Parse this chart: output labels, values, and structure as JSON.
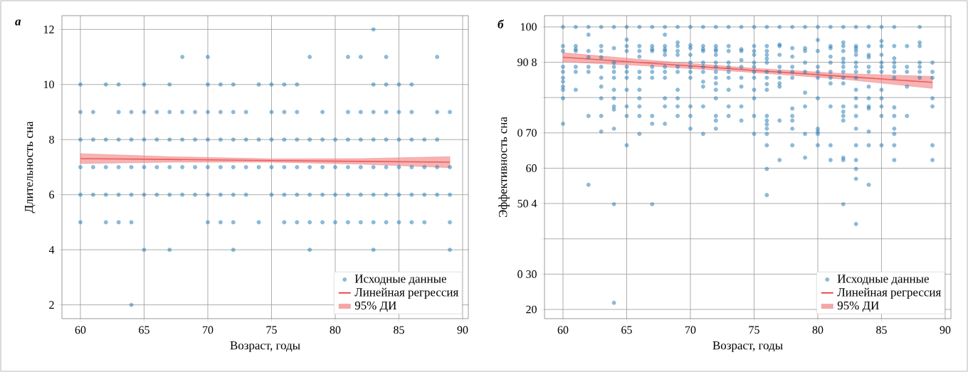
{
  "chart_data": [
    {
      "type": "scatter",
      "title": "а",
      "xlabel": "Возраст, годы",
      "ylabel": "Длительность сна",
      "xlim": [
        58.55,
        90.45
      ],
      "ylim": [
        1.5,
        12.5
      ],
      "xticks": [
        60,
        65,
        70,
        75,
        80,
        85,
        90
      ],
      "yticks": [
        2,
        4,
        6,
        8,
        10,
        12
      ],
      "grid": true,
      "legend": "bottom right",
      "annotations": [
        "95% ДИ"
      ],
      "series": [
        {
          "name": "Исходные данные",
          "color": "#1f77b4",
          "x": [
            83,
            68,
            70,
            78,
            81,
            82,
            84,
            88,
            60,
            62,
            63,
            65,
            67,
            70,
            71,
            72,
            74,
            75,
            76,
            77,
            83,
            84,
            85,
            86,
            60,
            61,
            63,
            64,
            65,
            66,
            67,
            68,
            69,
            70,
            71,
            72,
            73,
            75,
            76,
            77,
            79,
            81,
            82,
            83,
            84,
            85,
            86,
            88,
            89,
            60,
            61,
            62,
            63,
            64,
            65,
            66,
            67,
            68,
            69,
            70,
            71,
            72,
            73,
            74,
            75,
            76,
            77,
            78,
            79,
            80,
            81,
            82,
            83,
            84,
            85,
            86,
            87,
            88,
            60,
            61,
            62,
            63,
            64,
            65,
            66,
            67,
            68,
            69,
            70,
            71,
            72,
            73,
            74,
            75,
            76,
            77,
            78,
            79,
            80,
            81,
            82,
            83,
            84,
            85,
            86,
            87,
            88,
            89,
            60,
            61,
            62,
            63,
            64,
            65,
            66,
            67,
            68,
            69,
            70,
            71,
            72,
            73,
            75,
            76,
            77,
            78,
            79,
            80,
            81,
            82,
            83,
            84,
            85,
            86,
            87,
            88,
            89,
            60,
            62,
            63,
            64,
            70,
            71,
            72,
            74,
            76,
            77,
            78,
            79,
            80,
            81,
            82,
            83,
            84,
            85,
            86,
            87,
            89,
            65,
            67,
            72,
            78,
            83,
            89,
            64
          ],
          "values": [
            12,
            11,
            11,
            11,
            11,
            11,
            11,
            11,
            10,
            10,
            10,
            10,
            10,
            10,
            10,
            10,
            10,
            10,
            10,
            10,
            10,
            10,
            10,
            10,
            9,
            9,
            9,
            9,
            9,
            9,
            9,
            9,
            9,
            9,
            9,
            9,
            9,
            9,
            9,
            9,
            9,
            9,
            9,
            9,
            9,
            9,
            9,
            9,
            9,
            8,
            8,
            8,
            8,
            8,
            8,
            8,
            8,
            8,
            8,
            8,
            8,
            8,
            8,
            8,
            8,
            8,
            8,
            8,
            8,
            8,
            8,
            8,
            8,
            8,
            8,
            8,
            8,
            8,
            7,
            7,
            7,
            7,
            7,
            7,
            7,
            7,
            7,
            7,
            7,
            7,
            7,
            7,
            7,
            7,
            7,
            7,
            7,
            7,
            7,
            7,
            7,
            7,
            7,
            7,
            7,
            7,
            7,
            7,
            6,
            6,
            6,
            6,
            6,
            6,
            6,
            6,
            6,
            6,
            6,
            6,
            6,
            6,
            6,
            6,
            6,
            6,
            6,
            6,
            6,
            6,
            6,
            6,
            6,
            6,
            6,
            6,
            6,
            5,
            5,
            5,
            5,
            5,
            5,
            5,
            5,
            5,
            5,
            5,
            5,
            5,
            5,
            5,
            5,
            5,
            5,
            5,
            5,
            5,
            4,
            4,
            4,
            4,
            4,
            4,
            2
          ]
        },
        {
          "type": "line",
          "name": "Линейная регрессия",
          "color": "#e8282b",
          "x": [
            60,
            67,
            75,
            82,
            89
          ],
          "values": [
            7.31,
            7.28,
            7.24,
            7.21,
            7.18
          ],
          "lower": [
            7.13,
            7.18,
            7.18,
            7.11,
            6.98
          ],
          "upper": [
            7.49,
            7.38,
            7.3,
            7.31,
            7.38
          ]
        }
      ]
    },
    {
      "type": "scatter",
      "title": "б",
      "xlabel": "Возраст, годы",
      "ylabel": "Эффективность сна",
      "xlim": [
        58.55,
        90.45
      ],
      "ylim": [
        17.4,
        103.2
      ],
      "xticks": [
        60,
        65,
        70,
        75,
        80,
        85,
        90
      ],
      "yticks": [
        100,
        {
          "value": 90,
          "label": "90 8"
        },
        {
          "value": 80,
          "label": null
        },
        {
          "value": 70,
          "label": "0 70"
        },
        60,
        {
          "value": 50,
          "label": "50 4"
        },
        {
          "value": 40,
          "label": null
        },
        {
          "value": 30,
          "label": "0 30"
        },
        20
      ],
      "grid": true,
      "legend": "bottom right",
      "annotations": [
        "95% ДИ"
      ],
      "series": [
        {
          "name": "Исходные данные",
          "color": "#1f77b4",
          "x": [
            60,
            60,
            60,
            60,
            60,
            60,
            60,
            60,
            60,
            60,
            60,
            61,
            61,
            61,
            61,
            61,
            61,
            61,
            62,
            62,
            62,
            62,
            62,
            62,
            62,
            62,
            63,
            63,
            63,
            63,
            63,
            63,
            63,
            63,
            63,
            63,
            64,
            64,
            64,
            64,
            64,
            64,
            64,
            64,
            64,
            64,
            64,
            64,
            64,
            65,
            65,
            65,
            65,
            65,
            65,
            65,
            65,
            65,
            65,
            65,
            66,
            66,
            66,
            66,
            66,
            66,
            66,
            66,
            66,
            66,
            66,
            67,
            67,
            67,
            67,
            67,
            67,
            67,
            67,
            67,
            67,
            68,
            68,
            68,
            68,
            68,
            68,
            68,
            68,
            68,
            68,
            68,
            68,
            69,
            69,
            69,
            69,
            69,
            69,
            69,
            69,
            69,
            69,
            69,
            70,
            70,
            70,
            70,
            70,
            70,
            70,
            70,
            70,
            70,
            70,
            71,
            71,
            71,
            71,
            71,
            71,
            71,
            71,
            71,
            71,
            71,
            72,
            72,
            72,
            72,
            72,
            72,
            72,
            72,
            72,
            72,
            72,
            72,
            72,
            72,
            72,
            73,
            73,
            73,
            73,
            73,
            73,
            73,
            73,
            73,
            73,
            74,
            74,
            74,
            74,
            74,
            74,
            74,
            74,
            74,
            75,
            75,
            75,
            75,
            75,
            75,
            75,
            75,
            75,
            75,
            75,
            75,
            76,
            76,
            76,
            76,
            76,
            76,
            76,
            76,
            76,
            76,
            76,
            76,
            76,
            76,
            76,
            76,
            76,
            76,
            77,
            77,
            77,
            77,
            77,
            77,
            77,
            77,
            77,
            77,
            77,
            78,
            78,
            78,
            78,
            78,
            78,
            78,
            78,
            78,
            78,
            78,
            79,
            79,
            79,
            79,
            79,
            79,
            79,
            79,
            79,
            80,
            80,
            80,
            80,
            80,
            80,
            80,
            80,
            80,
            80,
            80,
            81,
            81,
            81,
            81,
            81,
            81,
            81,
            81,
            81,
            81,
            81,
            82,
            82,
            82,
            82,
            82,
            82,
            82,
            82,
            82,
            82,
            82,
            82,
            82,
            82,
            82,
            82,
            82,
            83,
            83,
            83,
            83,
            83,
            83,
            83,
            83,
            83,
            83,
            83,
            83,
            83,
            83,
            83,
            83,
            83,
            83,
            83,
            84,
            84,
            84,
            84,
            84,
            84,
            84,
            84,
            84,
            84,
            84,
            84,
            84,
            85,
            85,
            85,
            85,
            85,
            85,
            85,
            85,
            85,
            85,
            85,
            85,
            86,
            86,
            86,
            86,
            86,
            86,
            86,
            86,
            86,
            86,
            86,
            86,
            86,
            87,
            87,
            87,
            87,
            87,
            88,
            88,
            88,
            88,
            88,
            88,
            88,
            89,
            89,
            89,
            89,
            89,
            89,
            89
          ],
          "values": [
            100,
            94.6,
            93.2,
            88.7,
            87.3,
            85.6,
            84.5,
            83.1,
            82.2,
            79.8,
            72.6,
            100,
            94.6,
            93.7,
            93.2,
            88.7,
            87.3,
            82.2,
            100,
            97.8,
            93.2,
            91.4,
            88.7,
            87.3,
            74.8,
            55.3,
            100,
            94.6,
            93.2,
            91.4,
            88.7,
            85.6,
            83.1,
            79.8,
            74.8,
            70.4,
            100,
            94.0,
            89.9,
            88.7,
            87.3,
            85.6,
            82.2,
            79.8,
            77.5,
            76.6,
            71.2,
            49.8,
            21.9,
            100,
            96.4,
            94.6,
            93.2,
            88.7,
            87.3,
            85.6,
            82.2,
            77.5,
            74.8,
            66.5,
            100,
            94.6,
            93.2,
            91.6,
            87.3,
            85.6,
            82.2,
            79.8,
            77.5,
            74.8,
            69.7,
            100,
            94.6,
            93.7,
            93.2,
            88.7,
            87.3,
            85.6,
            74.8,
            72.6,
            49.8,
            100,
            97.8,
            94.6,
            93.7,
            93.2,
            92.1,
            88.7,
            87.3,
            85.6,
            79.8,
            77.5,
            72.6,
            100,
            95.6,
            94.6,
            93.2,
            92.1,
            88.7,
            87.3,
            82.2,
            79.8,
            77.5,
            74.8,
            100,
            94.8,
            94.0,
            92.1,
            89.9,
            88.7,
            87.3,
            85.6,
            77.5,
            74.8,
            71.2,
            100,
            94.6,
            93.7,
            93.2,
            89.9,
            88.7,
            87.3,
            84.5,
            83.1,
            77.5,
            69.7,
            100,
            94.6,
            93.7,
            93.2,
            92.1,
            89.9,
            88.7,
            87.3,
            85.6,
            84.0,
            82.2,
            79.8,
            74.8,
            73.5,
            71.2,
            100,
            94.6,
            93.2,
            89.9,
            88.7,
            87.3,
            85.6,
            82.2,
            77.5,
            74.8,
            100,
            93.7,
            93.2,
            90.6,
            88.7,
            85.6,
            83.1,
            77.5,
            73.5,
            100,
            94.6,
            93.2,
            92.1,
            89.9,
            88.7,
            87.3,
            85.6,
            82.2,
            79.8,
            74.8,
            69.7,
            100,
            94.6,
            93.2,
            92.1,
            91.0,
            89.9,
            87.3,
            85.6,
            83.8,
            82.2,
            74.8,
            73.5,
            72.4,
            71.2,
            69.7,
            66.5,
            59.8,
            52.4,
            100,
            95.0,
            94.6,
            92.1,
            88.7,
            87.3,
            85.6,
            84.0,
            83.1,
            73.5,
            62.3,
            100,
            94.0,
            91.6,
            88.7,
            87.3,
            85.6,
            76.9,
            74.8,
            73.5,
            71.2,
            66.5,
            100,
            94.0,
            93.2,
            89.9,
            87.3,
            81.4,
            77.5,
            69.7,
            63.0,
            100,
            96.3,
            93.2,
            88.7,
            87.3,
            85.6,
            79.8,
            71.2,
            70.4,
            69.7,
            66.5,
            100,
            94.6,
            94.0,
            91.6,
            89.9,
            87.3,
            85.6,
            84.0,
            77.5,
            66.5,
            62.3,
            100,
            95.6,
            94.6,
            93.2,
            91.0,
            89.9,
            88.7,
            87.3,
            85.6,
            84.0,
            77.5,
            76.0,
            74.8,
            73.5,
            63.0,
            62.3,
            49.8,
            100,
            94.6,
            94.0,
            93.2,
            92.1,
            89.9,
            88.7,
            87.3,
            85.6,
            82.2,
            79.8,
            77.5,
            74.8,
            71.2,
            66.5,
            62.3,
            59.8,
            57.0,
            44.2,
            100,
            94.6,
            92.1,
            91.4,
            88.7,
            87.3,
            83.1,
            79.8,
            77.5,
            76.9,
            70.4,
            66.5,
            55.3,
            100,
            96.0,
            94.6,
            92.1,
            89.9,
            88.7,
            87.3,
            82.2,
            79.8,
            77.5,
            74.8,
            66.5,
            100,
            94.6,
            91.1,
            89.9,
            88.7,
            87.3,
            85.6,
            77.2,
            74.8,
            71.2,
            69.7,
            66.5,
            62.3,
            94.6,
            88.7,
            87.3,
            83.1,
            74.8,
            100,
            95.6,
            94.6,
            89.9,
            88.7,
            87.3,
            85.6,
            89.9,
            87.3,
            85.6,
            79.8,
            77.5,
            66.5,
            62.3
          ]
        },
        {
          "type": "line",
          "name": "Линейная регрессия",
          "color": "#e8282b",
          "x": [
            60,
            67,
            75,
            82,
            89
          ],
          "values": [
            91.4,
            89.7,
            87.7,
            86.0,
            84.3
          ],
          "lower": [
            90.1,
            88.9,
            87.1,
            85.2,
            82.6
          ],
          "upper": [
            92.7,
            90.5,
            88.3,
            86.8,
            86.0
          ]
        }
      ]
    }
  ]
}
